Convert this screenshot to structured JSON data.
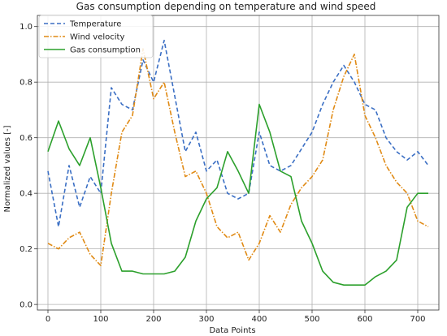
{
  "chart_data": {
    "type": "line",
    "title": "Gas consumption depending on temperature and wind speed",
    "xlabel": "Data Points",
    "ylabel": "Normalized values [-]",
    "xlim": [
      -20,
      740
    ],
    "ylim": [
      -0.02,
      1.04
    ],
    "xticks": [
      0,
      100,
      200,
      300,
      400,
      500,
      600,
      700
    ],
    "yticks": [
      0.0,
      0.2,
      0.4,
      0.6,
      0.8,
      1.0
    ],
    "xtick_labels": [
      "0",
      "100",
      "200",
      "300",
      "400",
      "500",
      "600",
      "700"
    ],
    "ytick_labels": [
      "0.0",
      "0.2",
      "0.4",
      "0.6",
      "0.8",
      "1.0"
    ],
    "grid": true,
    "legend_position": "top-left",
    "x": [
      0,
      20,
      40,
      60,
      80,
      100,
      120,
      140,
      160,
      180,
      200,
      220,
      240,
      260,
      280,
      300,
      320,
      340,
      360,
      380,
      400,
      420,
      440,
      460,
      480,
      500,
      520,
      540,
      560,
      580,
      600,
      620,
      640,
      660,
      680,
      700,
      720
    ],
    "series": [
      {
        "name": "Temperature",
        "color": "#3b6fc4",
        "dash": "dashed",
        "values": [
          0.48,
          0.28,
          0.5,
          0.35,
          0.46,
          0.4,
          0.78,
          0.72,
          0.7,
          0.88,
          0.8,
          0.95,
          0.75,
          0.55,
          0.62,
          0.48,
          0.52,
          0.4,
          0.38,
          0.4,
          0.62,
          0.5,
          0.48,
          0.5,
          0.56,
          0.62,
          0.72,
          0.8,
          0.86,
          0.8,
          0.72,
          0.7,
          0.6,
          0.55,
          0.52,
          0.55,
          0.5
        ]
      },
      {
        "name": "Wind velocity",
        "color": "#e08a14",
        "dash": "dashdot",
        "values": [
          0.22,
          0.2,
          0.24,
          0.26,
          0.18,
          0.14,
          0.4,
          0.62,
          0.68,
          0.92,
          0.74,
          0.8,
          0.62,
          0.46,
          0.48,
          0.4,
          0.28,
          0.24,
          0.26,
          0.16,
          0.22,
          0.32,
          0.26,
          0.36,
          0.42,
          0.46,
          0.52,
          0.7,
          0.82,
          0.9,
          0.68,
          0.6,
          0.5,
          0.44,
          0.4,
          0.3,
          0.28
        ]
      },
      {
        "name": "Gas consumption",
        "color": "#2ca02c",
        "dash": "solid",
        "values": [
          0.55,
          0.66,
          0.56,
          0.5,
          0.6,
          0.42,
          0.22,
          0.12,
          0.12,
          0.11,
          0.11,
          0.11,
          0.12,
          0.17,
          0.3,
          0.38,
          0.42,
          0.55,
          0.48,
          0.4,
          0.72,
          0.62,
          0.48,
          0.46,
          0.3,
          0.22,
          0.12,
          0.08,
          0.07,
          0.07,
          0.07,
          0.1,
          0.12,
          0.16,
          0.35,
          0.4,
          0.4
        ]
      }
    ]
  }
}
